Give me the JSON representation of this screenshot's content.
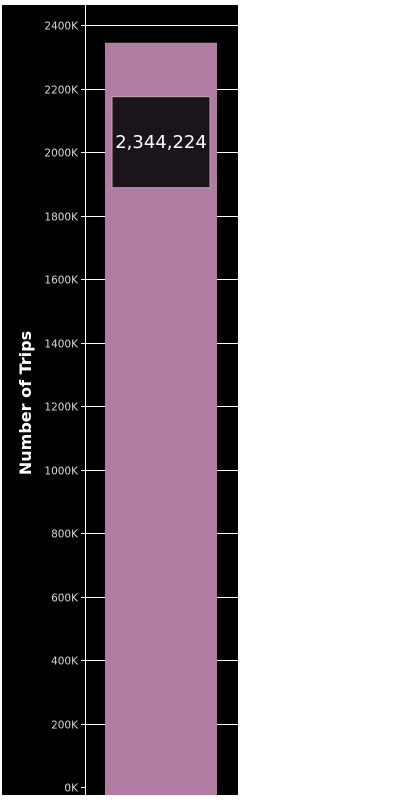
{
  "chart_data": {
    "type": "bar",
    "categories": [
      ""
    ],
    "values": [
      2344224
    ],
    "data_labels": [
      "2,344,224"
    ],
    "ylabel": "Number of Trips",
    "ylim": [
      0,
      2400000
    ],
    "yticks": [
      0,
      200000,
      400000,
      600000,
      800000,
      1000000,
      1200000,
      1400000,
      1600000,
      1800000,
      2000000,
      2200000,
      2400000
    ],
    "ytick_labels": [
      "0K",
      "200K",
      "400K",
      "600K",
      "800K",
      "1000K",
      "1200K",
      "1400K",
      "1600K",
      "1800K",
      "2000K",
      "2200K",
      "2400K"
    ],
    "grid": true,
    "colors": {
      "background": "#000000",
      "bar": "#b07ca2",
      "gridline": "#ffffff",
      "label_box": "#1b141b",
      "label_box_border": "#b8a6b4"
    }
  }
}
